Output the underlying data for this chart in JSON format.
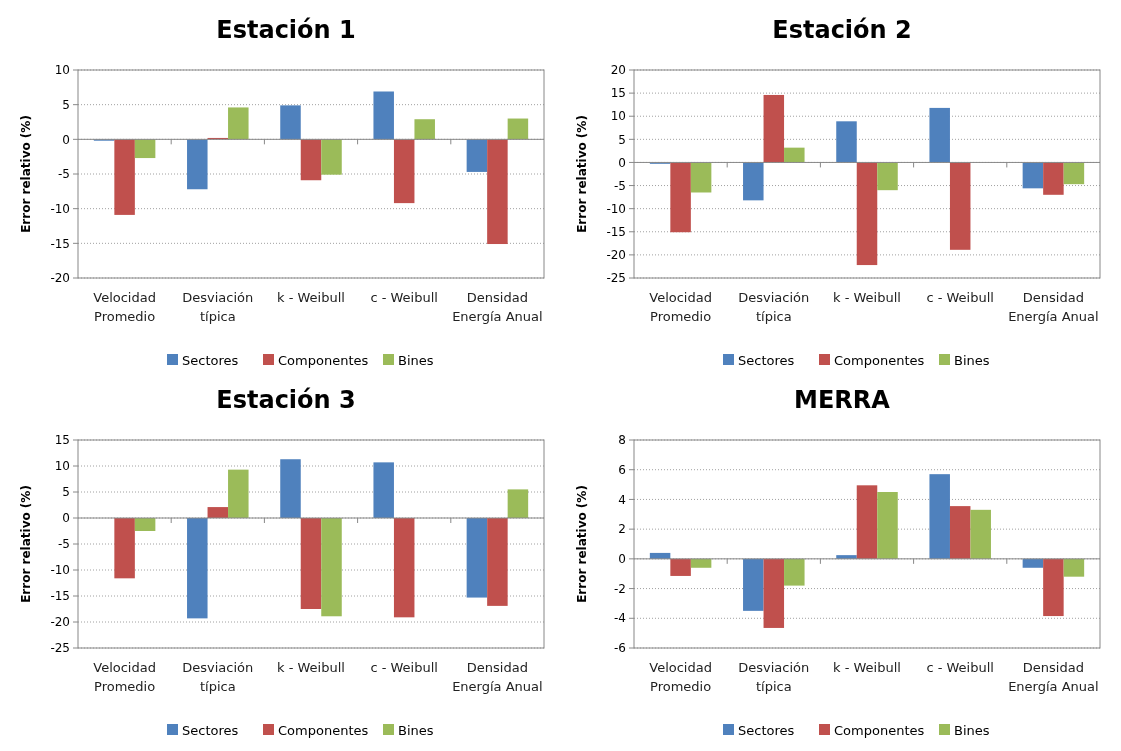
{
  "chart_data": [
    {
      "type": "bar",
      "title": "Estación 1",
      "ylabel": "Error relativo (%)",
      "categories": [
        "Velocidad Promedio",
        "Desviación típica",
        "k - Weibull",
        "c - Weibull",
        "Densidad Energía Anual"
      ],
      "series": [
        {
          "name": "Sectores",
          "color": "#4f81bd",
          "values": [
            -0.2,
            -7.2,
            4.9,
            6.9,
            -4.7
          ]
        },
        {
          "name": "Componentes",
          "color": "#c0504d",
          "values": [
            -10.9,
            0.2,
            -5.9,
            -9.2,
            -15.1
          ]
        },
        {
          "name": "Bines",
          "color": "#9bbb59",
          "values": [
            -2.7,
            4.6,
            -5.1,
            2.9,
            3.0
          ]
        }
      ],
      "ylim": [
        -20,
        10
      ],
      "yticks": [
        -20,
        -15,
        -10,
        -5,
        0,
        5,
        10
      ],
      "grid": "y",
      "legend": "bottom"
    },
    {
      "type": "bar",
      "title": "Estación 2",
      "ylabel": "Error relativo (%)",
      "categories": [
        "Velocidad Promedio",
        "Desviación típica",
        "k - Weibull",
        "c - Weibull",
        "Densidad Energía Anual"
      ],
      "series": [
        {
          "name": "Sectores",
          "color": "#4f81bd",
          "values": [
            -0.3,
            -8.2,
            8.9,
            11.8,
            -5.6
          ]
        },
        {
          "name": "Componentes",
          "color": "#c0504d",
          "values": [
            -15.1,
            14.6,
            -22.2,
            -18.9,
            -7.0
          ]
        },
        {
          "name": "Bines",
          "color": "#9bbb59",
          "values": [
            -6.5,
            3.2,
            -6.0,
            0,
            -4.7
          ]
        }
      ],
      "ylim": [
        -25,
        20
      ],
      "yticks": [
        -25,
        -20,
        -15,
        -10,
        -5,
        0,
        5,
        10,
        15,
        20
      ],
      "grid": "y",
      "legend": "bottom"
    },
    {
      "type": "bar",
      "title": "Estación 3",
      "ylabel": "Error relativo (%)",
      "categories": [
        "Velocidad Promedio",
        "Desviación típica",
        "k - Weibull",
        "c - Weibull",
        "Densidad Energía Anual"
      ],
      "series": [
        {
          "name": "Sectores",
          "color": "#4f81bd",
          "values": [
            0,
            -19.3,
            11.3,
            10.7,
            -15.3
          ]
        },
        {
          "name": "Componentes",
          "color": "#c0504d",
          "values": [
            -11.6,
            2.1,
            -17.5,
            -19.1,
            -16.9
          ]
        },
        {
          "name": "Bines",
          "color": "#9bbb59",
          "values": [
            -2.5,
            9.3,
            -18.9,
            0,
            5.5
          ]
        }
      ],
      "ylim": [
        -25,
        15
      ],
      "yticks": [
        -25,
        -20,
        -15,
        -10,
        -5,
        0,
        5,
        10,
        15
      ],
      "grid": "y",
      "legend": "bottom"
    },
    {
      "type": "bar",
      "title": "MERRA",
      "ylabel": "Error relativo (%)",
      "categories": [
        "Velocidad Promedio",
        "Desviación típica",
        "k - Weibull",
        "c - Weibull",
        "Densidad Energía Anual"
      ],
      "series": [
        {
          "name": "Sectores",
          "color": "#4f81bd",
          "values": [
            0.4,
            -3.5,
            0.25,
            5.7,
            -0.6
          ]
        },
        {
          "name": "Componentes",
          "color": "#c0504d",
          "values": [
            -1.15,
            -4.65,
            4.95,
            3.55,
            -3.85
          ]
        },
        {
          "name": "Bines",
          "color": "#9bbb59",
          "values": [
            -0.6,
            -1.8,
            4.5,
            3.3,
            -1.2
          ]
        }
      ],
      "ylim": [
        -6,
        8
      ],
      "yticks": [
        -6,
        -4,
        -2,
        0,
        2,
        4,
        6,
        8
      ],
      "grid": "y",
      "legend": "bottom"
    }
  ]
}
